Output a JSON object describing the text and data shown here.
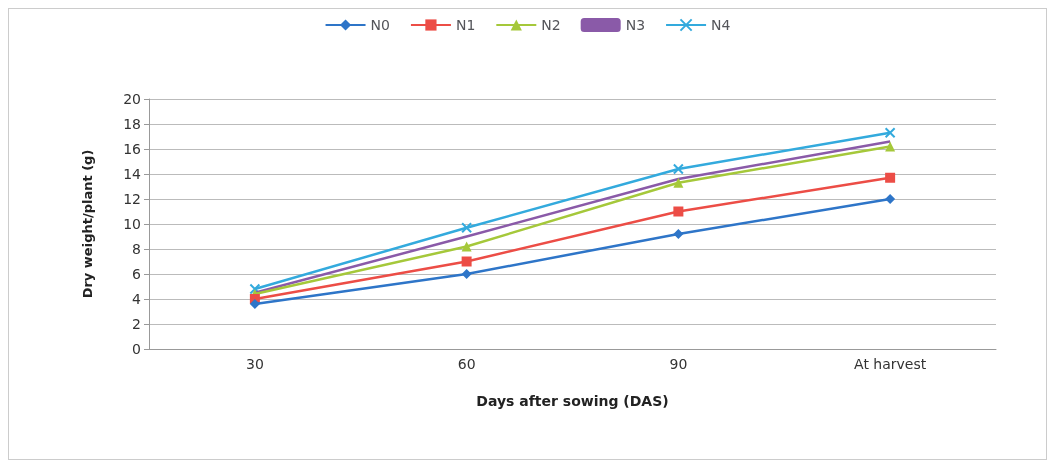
{
  "chart_data": {
    "type": "line",
    "xlabel": "Days after sowing (DAS)",
    "ylabel": "Dry weight/plant (g)",
    "categories": [
      "30",
      "60",
      "90",
      "At harvest"
    ],
    "ylim": [
      0,
      20
    ],
    "yticks": [
      0,
      2,
      4,
      6,
      8,
      10,
      12,
      14,
      16,
      18,
      20
    ],
    "grid": "y",
    "legend": "top",
    "series": [
      {
        "name": "N0",
        "color": "#2e75c8",
        "marker": "diamond",
        "values": [
          3.6,
          6.0,
          9.2,
          12.0
        ]
      },
      {
        "name": "N1",
        "color": "#ec4d46",
        "marker": "square",
        "values": [
          4.0,
          7.0,
          11.0,
          13.7
        ]
      },
      {
        "name": "N2",
        "color": "#a5c83a",
        "marker": "triangle",
        "values": [
          4.4,
          8.2,
          13.3,
          16.2
        ]
      },
      {
        "name": "N3",
        "color": "#8a5aa8",
        "marker": "none",
        "values": [
          4.5,
          9.0,
          13.6,
          16.6
        ]
      },
      {
        "name": "N4",
        "color": "#33aadd",
        "marker": "cross",
        "values": [
          4.8,
          9.7,
          14.4,
          17.3
        ]
      }
    ]
  }
}
